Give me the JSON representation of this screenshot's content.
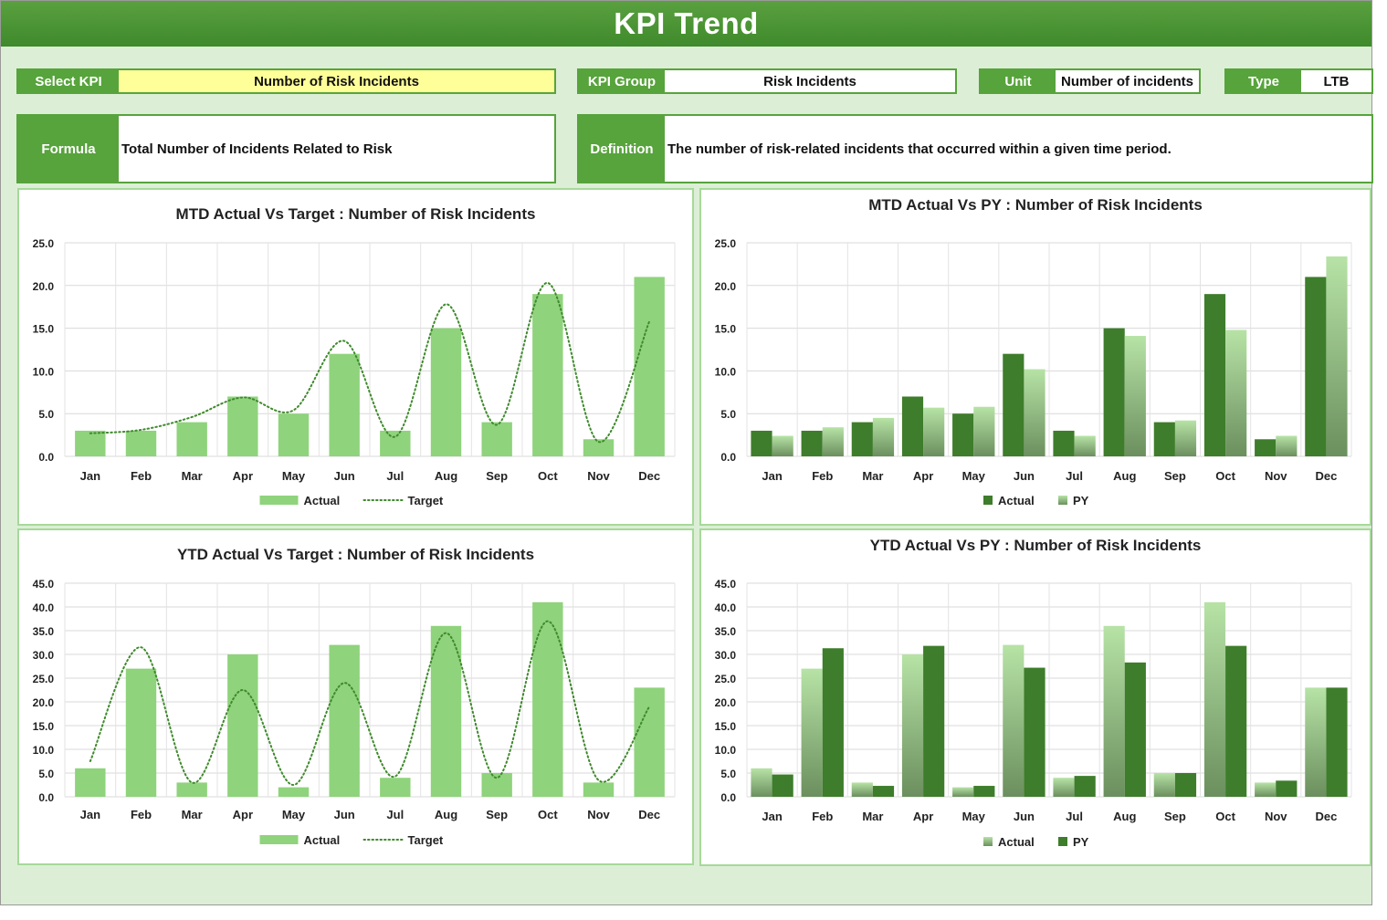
{
  "page": {
    "title": "KPI Trend"
  },
  "selectors": {
    "select_kpi": {
      "label": "Select KPI",
      "value": "Number of Risk Incidents"
    },
    "kpi_group": {
      "label": "KPI Group",
      "value": "Risk Incidents"
    },
    "unit": {
      "label": "Unit",
      "value": "Number of incidents"
    },
    "type": {
      "label": "Type",
      "value": "LTB"
    }
  },
  "info": {
    "formula": {
      "label": "Formula",
      "value": "Total Number of Incidents Related to Risk"
    },
    "definition": {
      "label": "Definition",
      "value": "The number of risk-related incidents that occurred within a given time period."
    }
  },
  "colors": {
    "brand_green": "#57a33c",
    "light_bar": "#8fd37c",
    "dark_bar": "#3e7d2b",
    "panel_border": "#a6d99a",
    "target_line": "#3f8a2c"
  },
  "chart_data": [
    {
      "id": "mtd-target",
      "type": "bar",
      "title": "MTD Actual Vs Target : Number of Risk Incidents",
      "categories": [
        "Jan",
        "Feb",
        "Mar",
        "Apr",
        "May",
        "Jun",
        "Jul",
        "Aug",
        "Sep",
        "Oct",
        "Nov",
        "Dec"
      ],
      "ylim": [
        0,
        25
      ],
      "yticks": [
        "0.0",
        "5.0",
        "10.0",
        "15.0",
        "20.0",
        "25.0"
      ],
      "grid": true,
      "legend_position": "bottom",
      "series": [
        {
          "name": "Actual",
          "kind": "bar",
          "style": "light",
          "values": [
            3,
            3,
            4,
            7,
            5,
            12,
            3,
            15,
            4,
            19,
            2,
            21
          ]
        },
        {
          "name": "Target",
          "kind": "dotted-line",
          "values": [
            2.7,
            3.1,
            4.6,
            6.9,
            5.4,
            13.5,
            2.3,
            17.8,
            3.7,
            20.3,
            1.7,
            15.8
          ]
        }
      ]
    },
    {
      "id": "mtd-py",
      "type": "bar",
      "title": "MTD Actual Vs PY : Number of Risk Incidents",
      "categories": [
        "Jan",
        "Feb",
        "Mar",
        "Apr",
        "May",
        "Jun",
        "Jul",
        "Aug",
        "Sep",
        "Oct",
        "Nov",
        "Dec"
      ],
      "ylim": [
        0,
        25
      ],
      "yticks": [
        "0.0",
        "5.0",
        "10.0",
        "15.0",
        "20.0",
        "25.0"
      ],
      "grid": true,
      "legend_position": "bottom",
      "series": [
        {
          "name": "Actual",
          "kind": "bar",
          "style": "dark",
          "values": [
            3,
            3,
            4,
            7,
            5,
            12,
            3,
            15,
            4,
            19,
            2,
            21
          ]
        },
        {
          "name": "PY",
          "kind": "bar",
          "style": "gradient",
          "values": [
            2.4,
            3.4,
            4.5,
            5.7,
            5.8,
            10.2,
            2.4,
            14.1,
            4.2,
            14.8,
            2.4,
            23.4
          ]
        }
      ]
    },
    {
      "id": "ytd-target",
      "type": "bar",
      "title": "YTD Actual Vs Target : Number of Risk Incidents",
      "categories": [
        "Jan",
        "Feb",
        "Mar",
        "Apr",
        "May",
        "Jun",
        "Jul",
        "Aug",
        "Sep",
        "Oct",
        "Nov",
        "Dec"
      ],
      "ylim": [
        0,
        45
      ],
      "yticks": [
        "0.0",
        "5.0",
        "10.0",
        "15.0",
        "20.0",
        "25.0",
        "30.0",
        "35.0",
        "40.0",
        "45.0"
      ],
      "grid": true,
      "legend_position": "bottom",
      "series": [
        {
          "name": "Actual",
          "kind": "bar",
          "style": "light",
          "values": [
            6,
            27,
            3,
            30,
            2,
            32,
            4,
            36,
            5,
            41,
            3,
            23
          ]
        },
        {
          "name": "Target",
          "kind": "dotted-line",
          "values": [
            7.5,
            31.5,
            3.0,
            22.5,
            2.5,
            24.0,
            4.3,
            34.5,
            4.0,
            37.0,
            3.5,
            19.0
          ]
        }
      ]
    },
    {
      "id": "ytd-py",
      "type": "bar",
      "title": "YTD Actual Vs PY : Number of Risk Incidents",
      "categories": [
        "Jan",
        "Feb",
        "Mar",
        "Apr",
        "May",
        "Jun",
        "Jul",
        "Aug",
        "Sep",
        "Oct",
        "Nov",
        "Dec"
      ],
      "ylim": [
        0,
        45
      ],
      "yticks": [
        "0.0",
        "5.0",
        "10.0",
        "15.0",
        "20.0",
        "25.0",
        "30.0",
        "35.0",
        "40.0",
        "45.0"
      ],
      "grid": true,
      "legend_position": "bottom",
      "series": [
        {
          "name": "Actual",
          "kind": "bar",
          "style": "gradient",
          "values": [
            6,
            27,
            3,
            30,
            2,
            32,
            4,
            36,
            5,
            41,
            3,
            23
          ]
        },
        {
          "name": "PY",
          "kind": "bar",
          "style": "dark",
          "values": [
            4.7,
            31.3,
            2.3,
            31.8,
            2.3,
            27.2,
            4.4,
            28.3,
            5.0,
            31.8,
            3.4,
            23.0
          ]
        }
      ]
    }
  ]
}
